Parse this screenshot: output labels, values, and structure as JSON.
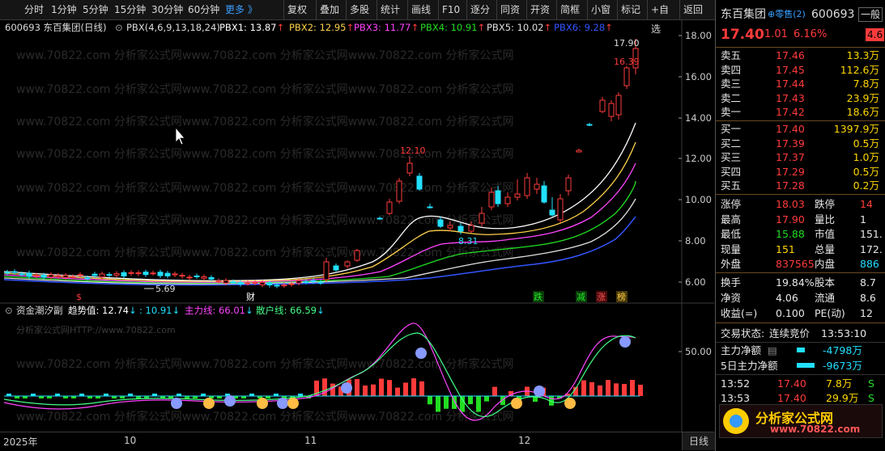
{
  "toolbar": {
    "periods": [
      "分时",
      "1分钟",
      "5分钟",
      "15分钟",
      "30分钟",
      "60分钟"
    ],
    "more": "更多 》",
    "buttons": [
      "复权",
      "叠加",
      "多股",
      "统计",
      "画线",
      "F10",
      "逐分",
      "同资",
      "开资",
      "简框",
      "小窗",
      "标记",
      "+自选",
      "返回"
    ]
  },
  "main_chart": {
    "stock_label": "600693 东百集团(日线)",
    "indicator_name": "PBX(4,6,9,13,18,24)",
    "pbx": [
      {
        "label": "PBX1:",
        "value": "13.87",
        "color": "#ffffff"
      },
      {
        "label": "PBX2:",
        "value": "12.95",
        "color": "#ffd24a"
      },
      {
        "label": "PBX3:",
        "value": "11.77",
        "color": "#ff44ff"
      },
      {
        "label": "PBX4:",
        "value": "10.91",
        "color": "#22dd22"
      },
      {
        "label": "PBX5:",
        "value": "10.02",
        "color": "#e0e0e0"
      },
      {
        "label": "PBX6:",
        "value": "9.28",
        "color": "#3355ff"
      }
    ],
    "y_ticks": [
      "18.00",
      "16.00",
      "14.00",
      "12.00",
      "10.00",
      "8.00",
      "6.00"
    ],
    "annotations": {
      "high": "17.90",
      "prev_high": "16.39",
      "peak1": "12.10",
      "low1": "8.31",
      "low0": "5.69"
    },
    "markers": [
      "$",
      "财",
      "跌",
      "减",
      "涨",
      "榜"
    ]
  },
  "sub_chart": {
    "name": "资金潮汐副",
    "trend_label": "趋势值:",
    "trend_value": "12.74",
    "second_value": ": 10.91",
    "main_label": "主力线:",
    "main_value": "66.01",
    "retail_label": "散户线:",
    "retail_value": "66.59",
    "y_tick": "50.00",
    "watermark": "分析家公式网HTTP://www.70822.com"
  },
  "x_axis": {
    "labels": [
      "2025年",
      "10",
      "11",
      "12"
    ],
    "kline_button": "日线"
  },
  "panel": {
    "name": "东百集团",
    "badge": "零售",
    "badge_count": "(2)",
    "code": "600693",
    "tag": "一般",
    "price": "17.40",
    "change": "1.01",
    "pct": "6.16%",
    "extra": "4.6",
    "asks": [
      {
        "label": "卖五",
        "price": "17.46",
        "vol": "13.3万"
      },
      {
        "label": "卖四",
        "price": "17.45",
        "vol": "112.6万"
      },
      {
        "label": "卖三",
        "price": "17.44",
        "vol": "7.8万"
      },
      {
        "label": "卖二",
        "price": "17.43",
        "vol": "23.9万"
      },
      {
        "label": "卖一",
        "price": "17.42",
        "vol": "18.6万"
      }
    ],
    "bids": [
      {
        "label": "买一",
        "price": "17.40",
        "vol": "1397.9万"
      },
      {
        "label": "买二",
        "price": "17.39",
        "vol": "0.5万"
      },
      {
        "label": "买三",
        "price": "17.37",
        "vol": "1.0万"
      },
      {
        "label": "买四",
        "price": "17.29",
        "vol": "0.5万"
      },
      {
        "label": "买五",
        "price": "17.28",
        "vol": "0.2万"
      }
    ],
    "stats": [
      {
        "l1": "涨停",
        "v1": "18.03",
        "l2": "跌停",
        "v2": "14"
      },
      {
        "l1": "最高",
        "v1": "17.90",
        "l2": "量比",
        "v2": "1"
      },
      {
        "l1": "最低",
        "v1": "15.88",
        "l2": "市值",
        "v2": "151."
      },
      {
        "l1": "现量",
        "v1": "151",
        "l2": "总量",
        "v2": "172."
      },
      {
        "l1": "外盘",
        "v1": "837565",
        "l2": "内盘",
        "v2": "886"
      }
    ],
    "fin": [
      {
        "l1": "换手",
        "v1": "19.84%",
        "l2": "股本",
        "v2": "8.7"
      },
      {
        "l1": "净资",
        "v1": "4.06",
        "l2": "流通",
        "v2": "8.6"
      },
      {
        "l1": "收益(=)",
        "v1": "0.100",
        "l2": "PE(动)",
        "v2": "12"
      }
    ],
    "trade_status_label": "交易状态:",
    "trade_status": "连续竞价",
    "trade_time": "13:53:10",
    "net_main_label": "主力净额",
    "net_main": "-4798万",
    "net_5d_label": "5日主力净额",
    "net_5d": "-9673万",
    "ticks": [
      {
        "time": "13:52",
        "price": "17.40",
        "vol": "7.8万",
        "side": "S"
      },
      {
        "time": "13:53",
        "price": "17.40",
        "vol": "29.9万",
        "side": "S"
      }
    ],
    "logo_text": "分析家公式网",
    "logo_url": "www.70822.com"
  }
}
